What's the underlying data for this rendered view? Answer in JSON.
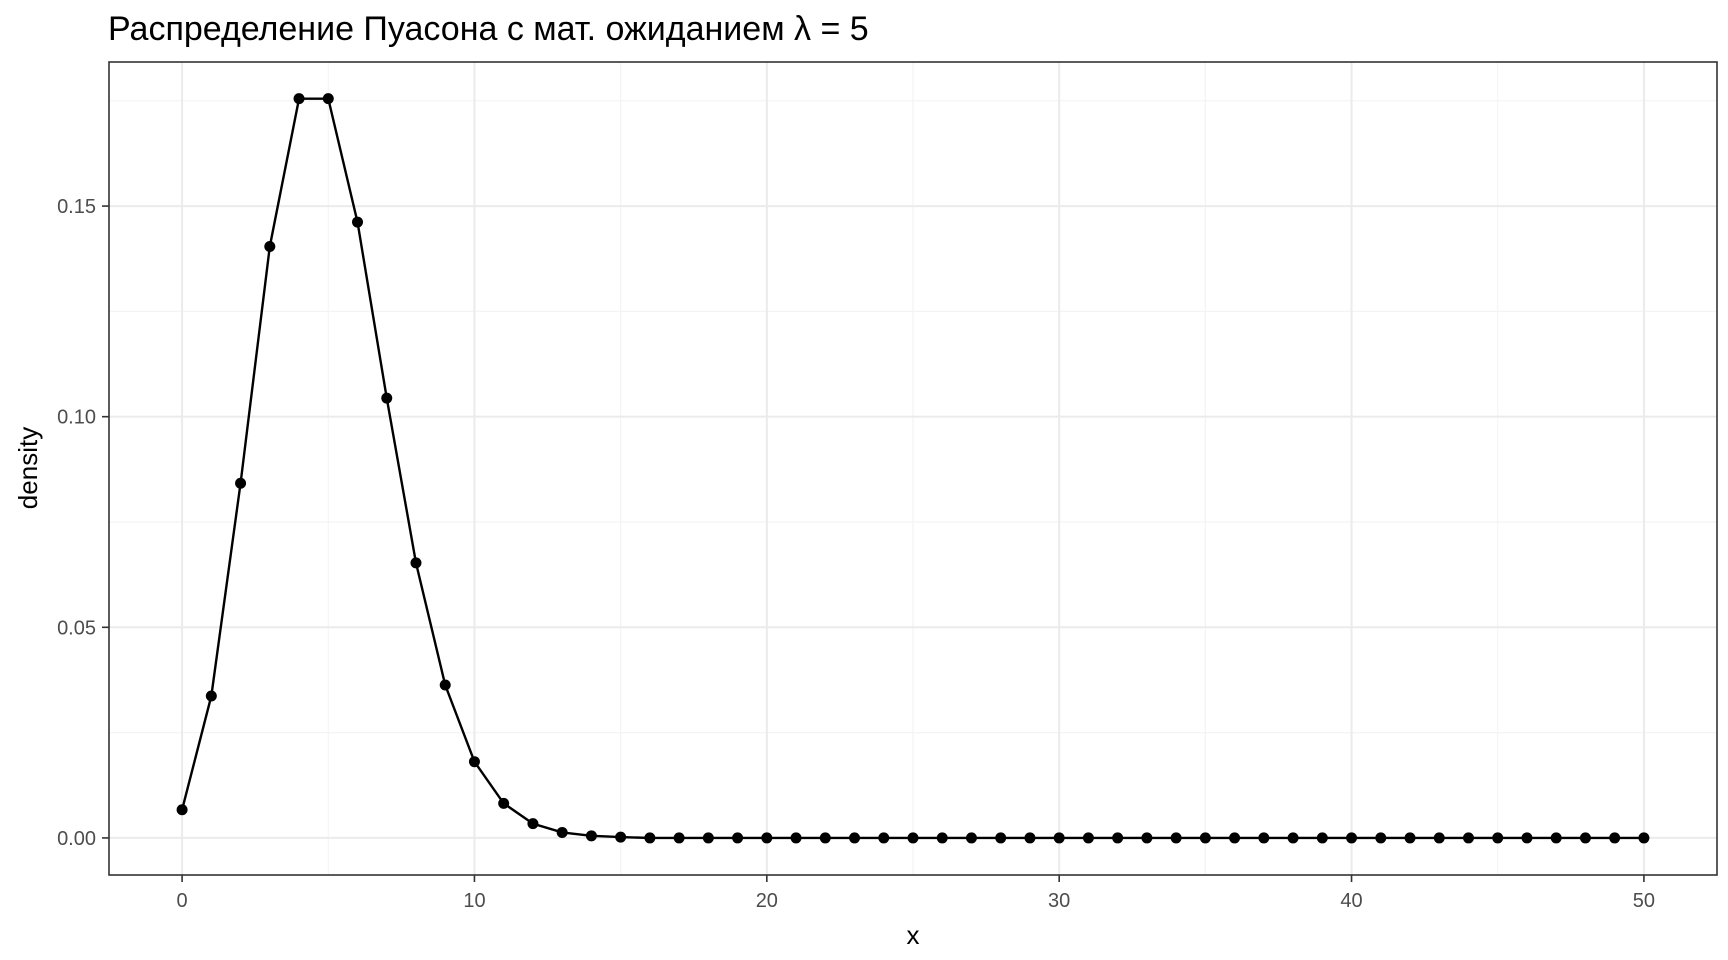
{
  "chart_data": {
    "type": "line",
    "title": "Распределение Пуасона с мат. ожиданием λ = 5",
    "xlabel": "x",
    "ylabel": "density",
    "xlim": [
      -2.5,
      52.5
    ],
    "ylim": [
      -0.0088,
      0.1842
    ],
    "x_ticks": [
      0,
      10,
      20,
      30,
      40,
      50
    ],
    "x_tick_labels": [
      "0",
      "10",
      "20",
      "30",
      "40",
      "50"
    ],
    "y_ticks": [
      0,
      0.05,
      0.1,
      0.15
    ],
    "y_tick_labels": [
      "0.00",
      "0.05",
      "0.10",
      "0.15"
    ],
    "grid": true,
    "markers": true,
    "series_color": "#000000",
    "x": [
      0,
      1,
      2,
      3,
      4,
      5,
      6,
      7,
      8,
      9,
      10,
      11,
      12,
      13,
      14,
      15,
      16,
      17,
      18,
      19,
      20,
      21,
      22,
      23,
      24,
      25,
      26,
      27,
      28,
      29,
      30,
      31,
      32,
      33,
      34,
      35,
      36,
      37,
      38,
      39,
      40,
      41,
      42,
      43,
      44,
      45,
      46,
      47,
      48,
      49,
      50
    ],
    "y": [
      0.0067,
      0.0337,
      0.0842,
      0.1404,
      0.1755,
      0.1755,
      0.1462,
      0.1044,
      0.0653,
      0.0363,
      0.0181,
      0.0082,
      0.0034,
      0.0013,
      0.0005,
      0.0002,
      0.0,
      0.0,
      0.0,
      0.0,
      0.0,
      0.0,
      0.0,
      0.0,
      0.0,
      0.0,
      0.0,
      0.0,
      0.0,
      0.0,
      0.0,
      0.0,
      0.0,
      0.0,
      0.0,
      0.0,
      0.0,
      0.0,
      0.0,
      0.0,
      0.0,
      0.0,
      0.0,
      0.0,
      0.0,
      0.0,
      0.0,
      0.0,
      0.0,
      0.0,
      0.0
    ]
  }
}
